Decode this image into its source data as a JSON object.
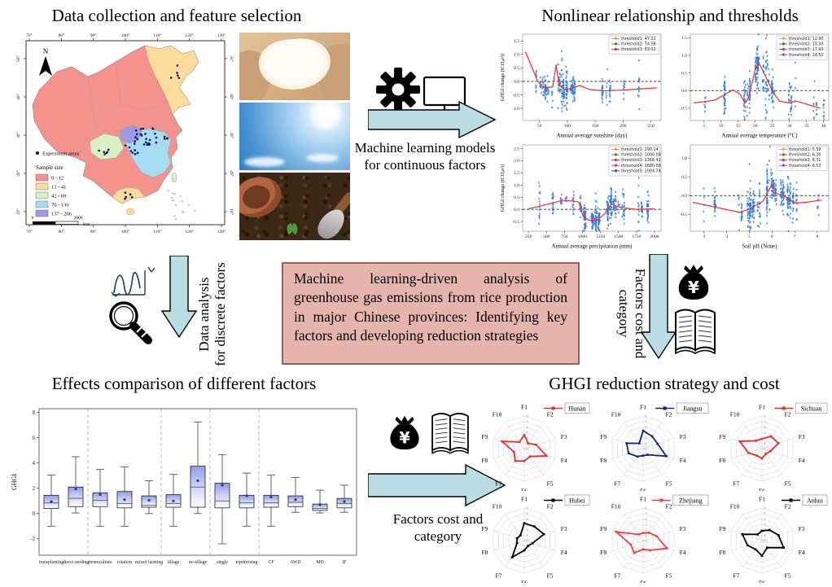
{
  "colors": {
    "arrow_fill": "#b9dde3",
    "arrow_stroke": "#000000",
    "central_box_fill": "#e5b4ad",
    "central_box_border": "#9c5f57",
    "scatter_point": "#2e7bd6",
    "trend_line": "#e03434"
  },
  "titles": {
    "top_left": "Data collection and feature selection",
    "top_right": "Nonlinear relationship and thresholds",
    "bottom_left": "Effects comparison of different factors",
    "bottom_right": "GHGI reduction strategy and cost"
  },
  "map": {
    "north_label": "N",
    "x_ticks": [
      "70°",
      "80°",
      "90°",
      "100°",
      "110°",
      "120°",
      "130°"
    ],
    "y_ticks": [
      "50°",
      "40°",
      "30°",
      "20°",
      "10°"
    ],
    "experiment_label": "Experiment areas",
    "legend_title": "Sample size",
    "legend": [
      {
        "label": "0 - 12",
        "color": "#f4938e"
      },
      {
        "label": "13 - 41",
        "color": "#fbdc9b"
      },
      {
        "label": "42 - 69",
        "color": "#d9f0c5"
      },
      {
        "label": "70 - 136",
        "color": "#a6dcf0"
      },
      {
        "label": "137 - 206",
        "color": "#9e9ae6"
      }
    ],
    "scale_left": "0",
    "scale_right": "2000",
    "scale_unit": "Km"
  },
  "flows": {
    "ml": {
      "line1": "Machine learning models",
      "line2": "for continuous factors"
    },
    "discrete": {
      "line1": "Data analysis",
      "line2": "for discrete factors"
    },
    "cost_vertical": {
      "line1": "Factors cost and",
      "line2": "category"
    },
    "cost_bottom": {
      "line1": "Factors cost and",
      "line2": "category"
    }
  },
  "central_box": {
    "text": "Machine learning-driven analysis of greenhouse gas emissions from rice production in major Chinese provinces: Identifying key factors and developing reduction strategies"
  },
  "chart_data": [
    {
      "id": "sunshine",
      "type": "scatter",
      "xlabel": "Annual average sunshine (day)",
      "ylabel": "GHGI change (tCO₂e/t)",
      "xlim": [
        20,
        268
      ],
      "ylim": [
        -1.45,
        1.75
      ],
      "xticks": [
        50,
        100,
        150,
        200,
        250
      ],
      "yticks": [
        -1.0,
        -0.5,
        0.0,
        0.5,
        1.0,
        1.5
      ],
      "legend": [
        {
          "label": "threshold1: 47.12",
          "color": "#f09e2e"
        },
        {
          "label": "threshold2: 74.58",
          "color": "#2e8b2e"
        },
        {
          "label": "threshold3: 83.02",
          "color": "#d42a2a"
        }
      ],
      "trend": [
        [
          25,
          1.1
        ],
        [
          47,
          0.0
        ],
        [
          60,
          -0.25
        ],
        [
          74,
          -0.2
        ],
        [
          80,
          0.62
        ],
        [
          85,
          -0.1
        ],
        [
          95,
          -0.32
        ],
        [
          110,
          -0.25
        ],
        [
          122,
          -0.15
        ],
        [
          140,
          -0.3
        ],
        [
          165,
          -0.35
        ],
        [
          200,
          -0.32
        ],
        [
          260,
          -0.24
        ]
      ],
      "dense": [
        55,
        115
      ],
      "clusters": 27,
      "seed": 11
    },
    {
      "id": "temperature",
      "type": "scatter",
      "xlabel": "Annual average temperature (°C)",
      "xlim": [
        1,
        41.5
      ],
      "ylim": [
        -0.85,
        1.6
      ],
      "xticks": [
        5,
        10,
        15,
        20,
        25,
        30,
        35,
        40
      ],
      "yticks": [
        -0.5,
        0.0,
        0.5,
        1.0,
        1.5
      ],
      "legend": [
        {
          "label": "threshold1: 12.90",
          "color": "#f09e2e"
        },
        {
          "label": "threshold2: 15.30",
          "color": "#2e8b2e"
        },
        {
          "label": "threshold3: 17.90",
          "color": "#d42a2a"
        },
        {
          "label": "threshold4: 24.50",
          "color": "#8a4a9e"
        }
      ],
      "trend": [
        [
          2,
          -0.35
        ],
        [
          8,
          -0.28
        ],
        [
          13.5,
          0.02
        ],
        [
          15.5,
          -0.1
        ],
        [
          17,
          -0.35
        ],
        [
          18,
          -0.2
        ],
        [
          20,
          0.6
        ],
        [
          21,
          0.8
        ],
        [
          23,
          0.4
        ],
        [
          25,
          0.0
        ],
        [
          27,
          -0.3
        ],
        [
          30,
          -0.35
        ],
        [
          32,
          -0.3
        ],
        [
          39,
          -0.5
        ]
      ],
      "dense": [
        14,
        25
      ],
      "clusters": 30,
      "seed": 22
    },
    {
      "id": "precipitation",
      "type": "scatter",
      "xlabel": "Annual average precipitation (mm)",
      "ylabel": "GHGI change (tCO₂e/t)",
      "xlim": [
        170,
        2090
      ],
      "ylim": [
        -0.9,
        2.65
      ],
      "xticks": [
        250,
        500,
        750,
        1000,
        1250,
        1500,
        1750,
        2000
      ],
      "yticks": [
        -0.5,
        0.0,
        0.5,
        1.0,
        1.5,
        2.0,
        2.5
      ],
      "legend": [
        {
          "label": "threshold1: 290.14",
          "color": "#f09e2e"
        },
        {
          "label": "threshold2: 1000.00",
          "color": "#2e8b2e"
        },
        {
          "label": "threshold3: 1368.41",
          "color": "#d42a2a"
        },
        {
          "label": "threshold4: 1680.00",
          "color": "#8a4a9e"
        },
        {
          "label": "threshold5: 2004.74",
          "color": "#6b4226"
        }
      ],
      "trend": [
        [
          250,
          0.02
        ],
        [
          500,
          0.2
        ],
        [
          700,
          0.35
        ],
        [
          860,
          0.35
        ],
        [
          950,
          0.3
        ],
        [
          1010,
          -0.3
        ],
        [
          1100,
          -0.45
        ],
        [
          1200,
          -0.45
        ],
        [
          1300,
          -0.2
        ],
        [
          1400,
          0.22
        ],
        [
          1500,
          0.1
        ],
        [
          1600,
          0.05
        ],
        [
          1750,
          0.0
        ],
        [
          2000,
          0.02
        ]
      ],
      "dense": [
        950,
        1600
      ],
      "clusters": 34,
      "seed": 33
    },
    {
      "id": "soilph",
      "type": "scatter",
      "xlabel": "Soil pH (None)",
      "xlim": [
        2.4,
        8.5
      ],
      "ylim": [
        -0.95,
        1.35
      ],
      "xticks": [
        3,
        4,
        5,
        6,
        7,
        8
      ],
      "yticks": [
        -0.5,
        0.0,
        0.5,
        1.0
      ],
      "legend": [
        {
          "label": "threshold1: 5.59",
          "color": "#f09e2e"
        },
        {
          "label": "threshold2: 6.30",
          "color": "#2e8b2e"
        },
        {
          "label": "threshold3: 6.31",
          "color": "#d42a2a"
        },
        {
          "label": "threshold4: 6.53",
          "color": "#8a4a9e"
        }
      ],
      "trend": [
        [
          2.5,
          -0.18
        ],
        [
          4.6,
          -0.45
        ],
        [
          5.2,
          -0.3
        ],
        [
          5.6,
          -0.15
        ],
        [
          6.0,
          0.3
        ],
        [
          6.2,
          0.05
        ],
        [
          6.5,
          0.0
        ],
        [
          7.0,
          -0.2
        ],
        [
          7.5,
          -0.18
        ],
        [
          8.2,
          -0.12
        ]
      ],
      "dense": [
        5.0,
        7.0
      ],
      "clusters": 34,
      "seed": 44
    },
    {
      "id": "boxplot",
      "type": "box",
      "ylabel": "GHGI",
      "ylim": [
        -3.3,
        8.3
      ],
      "yticks": [
        -2,
        0,
        2,
        4,
        6,
        8
      ],
      "categories": [
        "transplanting",
        "direct seeding",
        "monoculture",
        "rotation",
        "mixed farming",
        "tillage",
        "no-tillage",
        "single",
        "topdressing",
        "CF",
        "AWD",
        "MD",
        "IF"
      ],
      "stats": [
        [
          -1.0,
          0.4,
          0.85,
          1.45,
          3.05,
          0.95
        ],
        [
          0.05,
          0.55,
          1.2,
          2.1,
          4.5,
          1.95
        ],
        [
          -1.0,
          0.55,
          1.05,
          1.65,
          3.5,
          1.5
        ],
        [
          -1.0,
          0.45,
          0.8,
          1.75,
          3.7,
          1.1
        ],
        [
          0.0,
          0.5,
          0.65,
          1.4,
          2.6,
          1.05
        ],
        [
          -1.0,
          0.5,
          0.8,
          1.5,
          3.1,
          1.0
        ],
        [
          0.0,
          0.5,
          2.1,
          3.75,
          7.25,
          2.6
        ],
        [
          -2.4,
          0.45,
          1.0,
          2.4,
          4.65,
          2.25
        ],
        [
          -1.0,
          0.45,
          0.85,
          1.45,
          3.2,
          1.4
        ],
        [
          -1.0,
          0.5,
          0.85,
          1.45,
          3.05,
          1.3
        ],
        [
          0.1,
          0.55,
          0.9,
          1.4,
          2.85,
          1.1
        ],
        [
          0.05,
          0.25,
          0.4,
          0.75,
          1.85,
          0.7
        ],
        [
          0.1,
          0.45,
          0.8,
          1.2,
          2.25,
          0.95
        ]
      ],
      "separators_after": [
        2,
        5,
        7,
        9
      ]
    },
    {
      "id": "radar",
      "type": "radar",
      "axes": [
        "F1",
        "F2",
        "F3",
        "F4",
        "F5",
        "F6",
        "F7",
        "F8",
        "F9",
        "F10"
      ],
      "rmax": 6,
      "rticks": [
        "0",
        "1",
        "2",
        "3",
        "4",
        "5",
        "6"
      ],
      "series": [
        {
          "name": "Hunan",
          "color": "#e8312e",
          "values": [
            2.5,
            1.2,
            2.3,
            4.3,
            1.8,
            2.3,
            2.8,
            2.0,
            4.3,
            1.5
          ]
        },
        {
          "name": "Jiangsu",
          "color": "#16246e",
          "values": [
            3.3,
            2.8,
            2.8,
            4.5,
            1.4,
            1.3,
            1.8,
            2.8,
            3.2,
            1.2
          ]
        },
        {
          "name": "Sichuan",
          "color": "#e8312e",
          "values": [
            1.8,
            2.8,
            3.2,
            1.6,
            1.2,
            1.8,
            1.6,
            2.6,
            4.3,
            1.8
          ]
        },
        {
          "name": "Hubei",
          "color": "#000000",
          "values": [
            3.2,
            3.2,
            3.8,
            1.6,
            1.2,
            1.8,
            3.8,
            1.4,
            1.4,
            1.2
          ]
        },
        {
          "name": "Zhejiang",
          "color": "#ef4044",
          "values": [
            1.4,
            1.8,
            2.6,
            4.6,
            2.2,
            1.6,
            2.8,
            2.4,
            5.2,
            1.4
          ]
        },
        {
          "name": "Anhui",
          "color": "#000000",
          "values": [
            1.8,
            2.4,
            3.2,
            4.2,
            1.6,
            2.8,
            2.0,
            2.8,
            3.8,
            1.4
          ]
        }
      ]
    }
  ]
}
